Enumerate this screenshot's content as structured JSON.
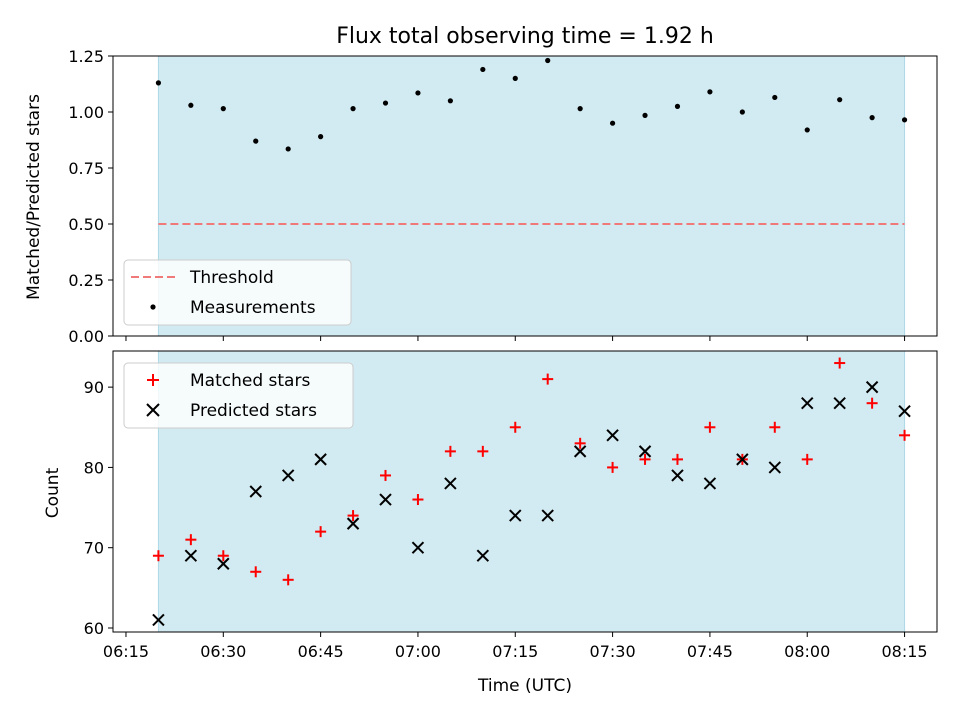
{
  "chart_data": [
    {
      "type": "scatter",
      "title": "Flux total observing time = 1.92 h",
      "ylabel": "Matched/Predicted stars",
      "ylim": [
        0.0,
        1.25
      ],
      "yticks": [
        0.0,
        0.25,
        0.5,
        0.75,
        1.0,
        1.25
      ],
      "ytick_labels": [
        "0.00",
        "0.25",
        "0.50",
        "0.75",
        "1.00",
        "1.25"
      ],
      "x_time": [
        "06:20",
        "06:25",
        "06:30",
        "06:35",
        "06:40",
        "06:45",
        "06:50",
        "06:55",
        "07:00",
        "07:05",
        "07:10",
        "07:15",
        "07:20",
        "07:25",
        "07:30",
        "07:35",
        "07:40",
        "07:45",
        "07:50",
        "07:55",
        "08:00",
        "08:05",
        "08:10",
        "08:15"
      ],
      "series": [
        {
          "name": "Measurements",
          "values": [
            1.13,
            1.03,
            1.015,
            0.87,
            0.835,
            0.89,
            1.015,
            1.04,
            1.085,
            1.05,
            1.19,
            1.15,
            1.23,
            1.015,
            0.95,
            0.985,
            1.025,
            1.09,
            1.0,
            1.065,
            0.92,
            1.055,
            0.975,
            0.965
          ],
          "color": "#000000"
        },
        {
          "name": "Threshold",
          "value": 0.5,
          "x_range": [
            "06:20",
            "08:15"
          ],
          "color": "#f07a7a",
          "style": "dashed"
        }
      ],
      "shaded_x_range": [
        "06:20",
        "08:15"
      ],
      "shade_color": "#add8e6",
      "legend_position": "lower-left"
    },
    {
      "type": "scatter",
      "xlabel": "Time (UTC)",
      "ylabel": "Count",
      "ylim": [
        59.5,
        94.5
      ],
      "yticks": [
        60,
        70,
        80,
        90
      ],
      "ytick_labels": [
        "60",
        "70",
        "80",
        "90"
      ],
      "xlim": [
        "06:13",
        "08:20"
      ],
      "xticks": [
        "06:15",
        "06:30",
        "06:45",
        "07:00",
        "07:15",
        "07:30",
        "07:45",
        "08:00",
        "08:15"
      ],
      "x_time": [
        "06:20",
        "06:25",
        "06:30",
        "06:35",
        "06:40",
        "06:45",
        "06:50",
        "06:55",
        "07:00",
        "07:05",
        "07:10",
        "07:15",
        "07:20",
        "07:25",
        "07:30",
        "07:35",
        "07:40",
        "07:45",
        "07:50",
        "07:55",
        "08:00",
        "08:05",
        "08:10",
        "08:15"
      ],
      "series": [
        {
          "name": "Matched stars",
          "values": [
            69,
            71,
            69,
            67,
            66,
            72,
            74,
            79,
            76,
            82,
            82,
            85,
            91,
            83,
            80,
            81,
            81,
            85,
            81,
            85,
            81,
            93,
            88,
            84
          ],
          "color": "#ff0000",
          "marker": "plus"
        },
        {
          "name": "Predicted stars",
          "values": [
            61,
            69,
            68,
            77,
            79,
            81,
            73,
            76,
            70,
            78,
            69,
            74,
            74,
            82,
            84,
            82,
            79,
            78,
            81,
            80,
            88,
            88,
            90,
            87
          ],
          "color": "#000000",
          "marker": "x"
        }
      ],
      "shaded_x_range": [
        "06:20",
        "08:15"
      ],
      "shade_color": "#add8e6",
      "legend_position": "upper-left"
    }
  ]
}
